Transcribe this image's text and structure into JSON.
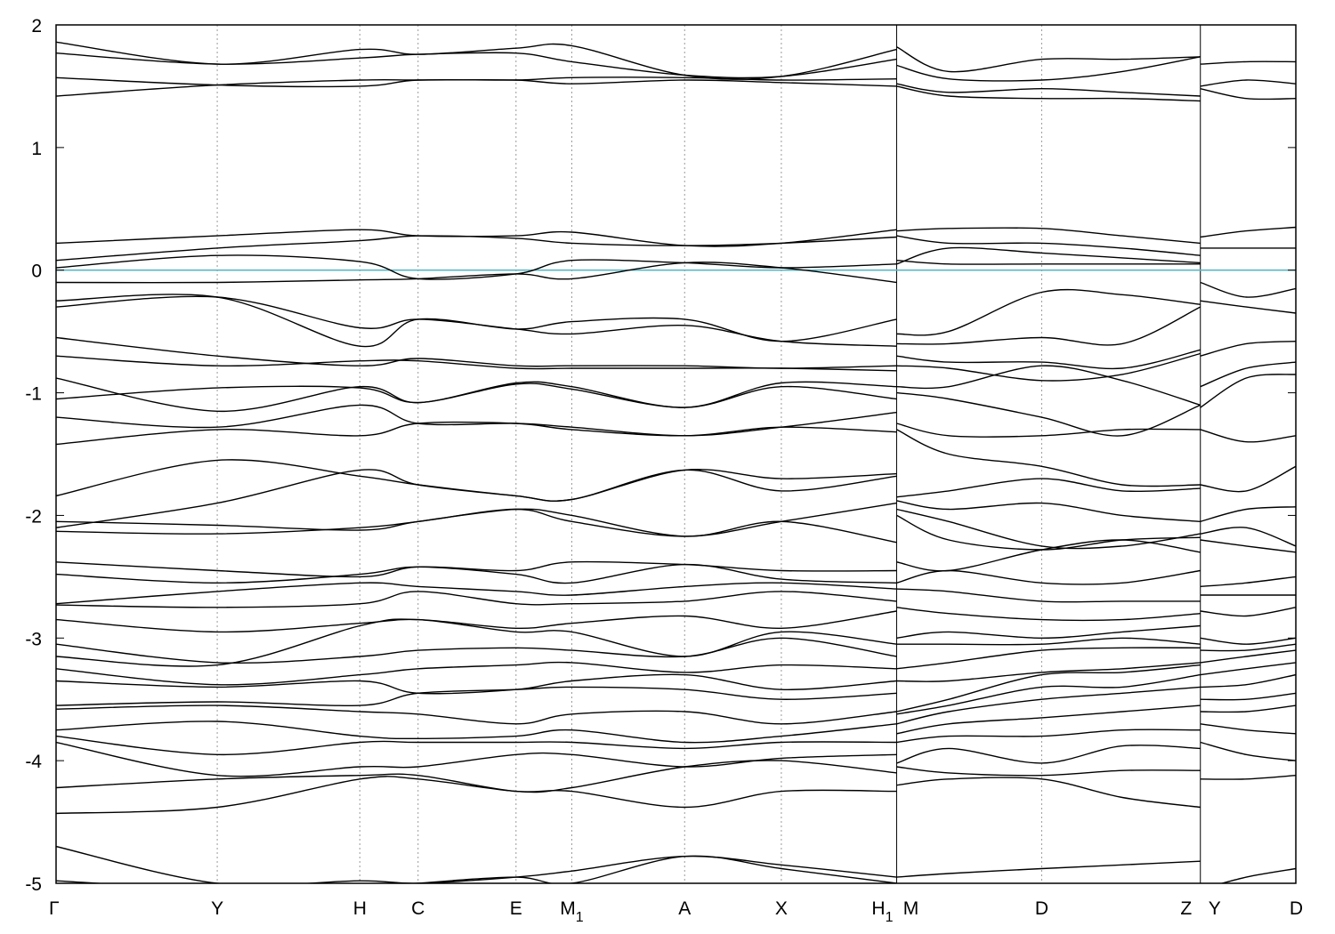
{
  "chart_data": {
    "type": "line",
    "title": "",
    "xlabel": "",
    "ylabel": "",
    "ylim": [
      -5,
      2
    ],
    "yticks": [
      -5,
      -4,
      -3,
      -2,
      -1,
      0,
      1,
      2
    ],
    "grid": "vertical dotted lines at high-symmetry points",
    "fermi_level": 0,
    "fermi_color": "#5ab7c6",
    "band_color": "#000000",
    "kpoints": [
      {
        "label": "Γ",
        "sub": "",
        "k": 0.0
      },
      {
        "label": "Y",
        "sub": "",
        "k": 0.13
      },
      {
        "label": "H",
        "sub": "",
        "k": 0.245
      },
      {
        "label": "C",
        "sub": "",
        "k": 0.292
      },
      {
        "label": "E",
        "sub": "",
        "k": 0.371
      },
      {
        "label": "M",
        "sub": "1",
        "k": 0.416
      },
      {
        "label": "A",
        "sub": "",
        "k": 0.507
      },
      {
        "label": "X",
        "sub": "",
        "k": 0.585
      },
      {
        "label": "H",
        "sub": "1",
        "k": 0.678
      },
      {
        "label": "M",
        "sub": "",
        "k": 0.678
      },
      {
        "label": "D",
        "sub": "",
        "k": 0.795
      },
      {
        "label": "Z",
        "sub": "",
        "k": 0.923
      },
      {
        "label": "Y",
        "sub": "",
        "k": 0.923
      },
      {
        "label": "D",
        "sub": "",
        "k": 1.0
      }
    ],
    "segments": [
      {
        "name": "Γ-Y-H-C-E-M1-A-X-H1",
        "k": [
          0.0,
          0.13,
          0.245,
          0.292,
          0.371,
          0.416,
          0.507,
          0.585,
          0.678
        ],
        "bands": [
          [
            1.86,
            1.68,
            1.8,
            1.76,
            1.81,
            1.83,
            1.59,
            1.58,
            1.8
          ],
          [
            1.77,
            1.68,
            1.73,
            1.76,
            1.77,
            1.7,
            1.59,
            1.58,
            1.72
          ],
          [
            1.57,
            1.51,
            1.5,
            1.55,
            1.55,
            1.57,
            1.57,
            1.55,
            1.56
          ],
          [
            1.42,
            1.51,
            1.55,
            1.55,
            1.55,
            1.52,
            1.55,
            1.53,
            1.5
          ],
          [
            0.22,
            0.28,
            0.33,
            0.28,
            0.28,
            0.31,
            0.2,
            0.22,
            0.33
          ],
          [
            0.08,
            0.18,
            0.24,
            0.28,
            0.26,
            0.22,
            0.2,
            0.22,
            0.27
          ],
          [
            0.02,
            0.12,
            0.07,
            -0.07,
            -0.03,
            0.08,
            0.06,
            0.02,
            0.05
          ],
          [
            -0.1,
            -0.1,
            -0.08,
            -0.07,
            -0.03,
            -0.07,
            0.06,
            0.02,
            -0.1
          ],
          [
            -0.25,
            -0.22,
            -0.62,
            -0.4,
            -0.48,
            -0.42,
            -0.4,
            -0.58,
            -0.4
          ],
          [
            -0.3,
            -0.22,
            -0.47,
            -0.4,
            -0.48,
            -0.52,
            -0.45,
            -0.58,
            -0.62
          ],
          [
            -0.55,
            -0.7,
            -0.78,
            -0.72,
            -0.78,
            -0.78,
            -0.78,
            -0.8,
            -0.78
          ],
          [
            -0.7,
            -0.78,
            -0.74,
            -0.74,
            -0.8,
            -0.8,
            -0.8,
            -0.8,
            -0.82
          ],
          [
            -0.88,
            -1.15,
            -0.95,
            -1.08,
            -0.92,
            -0.95,
            -1.12,
            -0.92,
            -0.95
          ],
          [
            -1.05,
            -0.96,
            -0.96,
            -1.08,
            -0.93,
            -0.97,
            -1.12,
            -0.95,
            -1.05
          ],
          [
            -1.2,
            -1.28,
            -1.1,
            -1.25,
            -1.25,
            -1.28,
            -1.35,
            -1.28,
            -1.16
          ],
          [
            -1.42,
            -1.3,
            -1.35,
            -1.25,
            -1.25,
            -1.3,
            -1.35,
            -1.28,
            -1.32
          ],
          [
            -1.84,
            -1.55,
            -1.68,
            -1.75,
            -1.84,
            -1.87,
            -1.63,
            -1.7,
            -1.66
          ],
          [
            -2.1,
            -1.9,
            -1.63,
            -1.75,
            -1.84,
            -1.87,
            -1.63,
            -1.8,
            -1.68
          ],
          [
            -2.05,
            -2.08,
            -2.12,
            -2.05,
            -1.95,
            -2.0,
            -2.17,
            -2.05,
            -2.22
          ],
          [
            -2.13,
            -2.15,
            -2.1,
            -2.05,
            -1.95,
            -2.05,
            -2.17,
            -2.05,
            -1.9
          ],
          [
            -2.38,
            -2.45,
            -2.5,
            -2.42,
            -2.45,
            -2.38,
            -2.4,
            -2.45,
            -2.45
          ],
          [
            -2.48,
            -2.55,
            -2.48,
            -2.42,
            -2.48,
            -2.55,
            -2.4,
            -2.52,
            -2.55
          ],
          [
            -2.72,
            -2.62,
            -2.55,
            -2.58,
            -2.62,
            -2.65,
            -2.58,
            -2.55,
            -2.6
          ],
          [
            -2.73,
            -2.75,
            -2.72,
            -2.62,
            -2.72,
            -2.72,
            -2.7,
            -2.62,
            -2.7
          ],
          [
            -2.85,
            -2.95,
            -2.88,
            -2.85,
            -2.92,
            -2.88,
            -2.82,
            -2.92,
            -2.78
          ],
          [
            -3.15,
            -3.22,
            -2.9,
            -2.85,
            -2.95,
            -2.95,
            -3.15,
            -2.95,
            -3.05
          ],
          [
            -3.05,
            -3.2,
            -3.15,
            -3.1,
            -3.08,
            -3.1,
            -3.15,
            -3.0,
            -3.15
          ],
          [
            -3.25,
            -3.38,
            -3.3,
            -3.25,
            -3.22,
            -3.2,
            -3.28,
            -3.22,
            -3.25
          ],
          [
            -3.35,
            -3.4,
            -3.35,
            -3.45,
            -3.42,
            -3.35,
            -3.3,
            -3.42,
            -3.35
          ],
          [
            -3.55,
            -3.52,
            -3.55,
            -3.45,
            -3.42,
            -3.4,
            -3.42,
            -3.5,
            -3.45
          ],
          [
            -3.58,
            -3.55,
            -3.6,
            -3.62,
            -3.7,
            -3.62,
            -3.6,
            -3.7,
            -3.6
          ],
          [
            -3.75,
            -3.68,
            -3.8,
            -3.82,
            -3.8,
            -3.75,
            -3.85,
            -3.8,
            -3.7
          ],
          [
            -3.8,
            -3.95,
            -3.85,
            -3.85,
            -3.85,
            -3.85,
            -3.9,
            -3.85,
            -3.85
          ],
          [
            -3.85,
            -4.12,
            -4.05,
            -4.05,
            -3.95,
            -3.95,
            -4.05,
            -3.98,
            -3.95
          ],
          [
            -4.22,
            -4.15,
            -4.12,
            -4.12,
            -4.25,
            -4.22,
            -4.05,
            -4.0,
            -4.1
          ],
          [
            -4.43,
            -4.38,
            -4.15,
            -4.15,
            -4.25,
            -4.25,
            -4.38,
            -4.25,
            -4.25
          ],
          [
            -4.7,
            -5.0,
            -4.98,
            -5.0,
            -4.95,
            -4.9,
            -4.78,
            -4.85,
            -4.95
          ],
          [
            -4.98,
            -5.05,
            -5.05,
            -5.0,
            -4.95,
            -5.0,
            -4.78,
            -4.88,
            -5.0
          ]
        ]
      },
      {
        "name": "M-D-Z",
        "k": [
          0.678,
          0.72,
          0.795,
          0.86,
          0.923
        ],
        "bands": [
          [
            1.82,
            1.62,
            1.72,
            1.72,
            1.74
          ],
          [
            1.67,
            1.56,
            1.55,
            1.62,
            1.74
          ],
          [
            1.52,
            1.45,
            1.48,
            1.45,
            1.42
          ],
          [
            1.5,
            1.42,
            1.4,
            1.4,
            1.38
          ],
          [
            0.32,
            0.34,
            0.34,
            0.28,
            0.22
          ],
          [
            0.28,
            0.22,
            0.22,
            0.18,
            0.12
          ],
          [
            0.05,
            0.18,
            0.14,
            0.1,
            0.06
          ],
          [
            0.08,
            0.05,
            0.05,
            0.05,
            0.05
          ],
          [
            -0.52,
            -0.5,
            -0.18,
            -0.2,
            -0.28
          ],
          [
            -0.6,
            -0.6,
            -0.55,
            -0.6,
            -0.3
          ],
          [
            -0.7,
            -0.75,
            -0.75,
            -0.8,
            -0.65
          ],
          [
            -0.78,
            -0.8,
            -0.9,
            -0.85,
            -0.68
          ],
          [
            -0.95,
            -0.95,
            -0.78,
            -0.9,
            -1.1
          ],
          [
            -1.0,
            -1.05,
            -1.2,
            -1.35,
            -1.1
          ],
          [
            -1.25,
            -1.35,
            -1.35,
            -1.3,
            -1.3
          ],
          [
            -1.3,
            -1.5,
            -1.6,
            -1.75,
            -1.75
          ],
          [
            -1.85,
            -1.8,
            -1.7,
            -1.8,
            -1.78
          ],
          [
            -1.88,
            -1.95,
            -1.9,
            -2.0,
            -2.05
          ],
          [
            -1.95,
            -2.05,
            -2.25,
            -2.25,
            -2.15
          ],
          [
            -2.0,
            -2.2,
            -2.28,
            -2.2,
            -2.18
          ],
          [
            -2.38,
            -2.45,
            -2.28,
            -2.2,
            -2.3
          ],
          [
            -2.55,
            -2.45,
            -2.55,
            -2.55,
            -2.45
          ],
          [
            -2.6,
            -2.62,
            -2.7,
            -2.7,
            -2.7
          ],
          [
            -2.75,
            -2.8,
            -2.85,
            -2.85,
            -2.8
          ],
          [
            -3.0,
            -2.95,
            -3.0,
            -2.95,
            -2.9
          ],
          [
            -3.05,
            -3.05,
            -3.05,
            -3.0,
            -3.05
          ],
          [
            -3.25,
            -3.2,
            -3.1,
            -3.08,
            -3.08
          ],
          [
            -3.35,
            -3.35,
            -3.28,
            -3.25,
            -3.2
          ],
          [
            -3.6,
            -3.5,
            -3.3,
            -3.28,
            -3.22
          ],
          [
            -3.62,
            -3.55,
            -3.4,
            -3.4,
            -3.3
          ],
          [
            -3.7,
            -3.6,
            -3.5,
            -3.45,
            -3.4
          ],
          [
            -3.78,
            -3.7,
            -3.65,
            -3.6,
            -3.55
          ],
          [
            -3.85,
            -3.8,
            -3.8,
            -3.75,
            -3.75
          ],
          [
            -4.02,
            -3.9,
            -4.02,
            -3.88,
            -3.9
          ],
          [
            -4.05,
            -4.1,
            -4.12,
            -4.08,
            -4.08
          ],
          [
            -4.2,
            -4.15,
            -4.15,
            -4.3,
            -4.38
          ],
          [
            -4.95,
            -4.92,
            -4.88,
            -4.85,
            -4.82
          ]
        ]
      },
      {
        "name": "Y-D",
        "k": [
          0.923,
          0.96,
          1.0
        ],
        "bands": [
          [
            1.68,
            1.7,
            1.7
          ],
          [
            1.5,
            1.55,
            1.52
          ],
          [
            1.48,
            1.4,
            1.4
          ],
          [
            0.27,
            0.32,
            0.35
          ],
          [
            0.18,
            0.18,
            0.18
          ],
          [
            -0.1,
            -0.22,
            -0.15
          ],
          [
            -0.25,
            -0.3,
            -0.35
          ],
          [
            -0.7,
            -0.6,
            -0.58
          ],
          [
            -0.95,
            -0.8,
            -0.75
          ],
          [
            -1.12,
            -0.88,
            -0.85
          ],
          [
            -1.3,
            -1.4,
            -1.35
          ],
          [
            -1.75,
            -1.8,
            -1.6
          ],
          [
            -2.05,
            -1.95,
            -1.93
          ],
          [
            -2.15,
            -2.1,
            -2.25
          ],
          [
            -2.2,
            -2.25,
            -2.3
          ],
          [
            -2.58,
            -2.55,
            -2.5
          ],
          [
            -2.65,
            -2.65,
            -2.65
          ],
          [
            -2.78,
            -2.82,
            -2.75
          ],
          [
            -3.0,
            -3.05,
            -3.0
          ],
          [
            -3.1,
            -3.1,
            -3.05
          ],
          [
            -3.2,
            -3.15,
            -3.1
          ],
          [
            -3.3,
            -3.25,
            -3.2
          ],
          [
            -3.4,
            -3.38,
            -3.3
          ],
          [
            -3.5,
            -3.5,
            -3.45
          ],
          [
            -3.6,
            -3.6,
            -3.55
          ],
          [
            -3.7,
            -3.75,
            -3.78
          ],
          [
            -3.85,
            -3.95,
            -4.0
          ],
          [
            -4.15,
            -4.15,
            -4.12
          ],
          [
            -5.05,
            -4.95,
            -4.88
          ]
        ]
      }
    ]
  }
}
